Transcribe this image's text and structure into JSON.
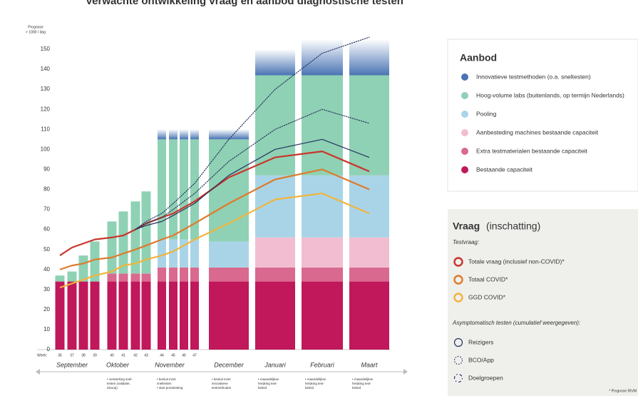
{
  "chart_data": {
    "type": "stacked-bar-line",
    "title": "Verwachte ontwikkeling vraag en aanbod diagnostische testen",
    "y_label": [
      "Prognose",
      "× 1000 / dag"
    ],
    "week_label": "Week:",
    "categories": [
      "36",
      "37",
      "38",
      "39",
      "40",
      "41",
      "42",
      "43",
      "44",
      "45",
      "46",
      "47",
      null,
      null,
      null,
      null
    ],
    "months": [
      {
        "label": "September",
        "notes": []
      },
      {
        "label": "Oktober",
        "notes": [
          "• versterking snel-",
          "testen (validatie,",
          "inkoop)"
        ]
      },
      {
        "label": "November",
        "notes": [
          "• besluit inzet",
          "sneltesten",
          "• start prototesting"
        ]
      },
      {
        "label": "December",
        "notes": [
          "• besluit inzet",
          "innovatieve",
          "testmethoden"
        ]
      },
      {
        "label": "Januari",
        "notes": [
          "• maandelijkse",
          "herijking test-",
          "beleid"
        ]
      },
      {
        "label": "Februari",
        "notes": [
          "• maandelijkse",
          "herijking test-",
          "beleid"
        ]
      },
      {
        "label": "Maart",
        "notes": [
          "• maandelijkse",
          "herijking test-",
          "beleid"
        ]
      }
    ],
    "ylim": [
      0,
      150
    ],
    "yticks": [
      0,
      10,
      20,
      30,
      40,
      50,
      60,
      70,
      80,
      90,
      100,
      110,
      120,
      130,
      140,
      150
    ],
    "series": [
      {
        "name": "Bestaande capaciteit",
        "color": "#c0185a",
        "values": [
          34,
          34,
          34,
          34,
          34,
          34,
          34,
          34,
          34,
          34,
          34,
          34,
          34,
          34,
          34,
          34
        ]
      },
      {
        "name": "Extra testmaterialen bestaande capaciteit",
        "color": "#d9698f",
        "values": [
          0,
          0,
          0,
          0,
          4,
          4,
          4,
          4,
          7,
          7,
          7,
          7,
          7,
          7,
          7,
          7
        ]
      },
      {
        "name": "Aanbesteding machines bestaande capaciteit",
        "color": "#f3bdd1",
        "values": [
          0,
          0,
          0,
          0,
          0,
          0,
          0,
          0,
          0,
          0,
          0,
          0,
          0,
          15,
          15,
          15
        ]
      },
      {
        "name": "Pooling",
        "color": "#a9d4e7",
        "values": [
          0,
          0,
          0,
          0,
          0,
          0,
          0,
          0,
          14,
          14,
          14,
          14,
          13,
          31,
          31,
          31
        ]
      },
      {
        "name": "Hoog-volume labs (buitenlands, op termijn Nederlands)",
        "color": "#8fd1b4",
        "values": [
          3,
          5,
          13,
          20,
          26,
          31,
          36,
          41,
          50,
          50,
          50,
          50,
          51,
          50,
          50,
          50
        ]
      },
      {
        "name": "Innovatieve testmethoden (o.a. sneltesten)",
        "color": "#4a74b4",
        "values": [
          0,
          0,
          0,
          0,
          0,
          0,
          0,
          0,
          5,
          5,
          5,
          5,
          5,
          13,
          18,
          18
        ]
      }
    ],
    "lines": [
      {
        "name": "Totale vraag (inclusief non-COVID)*",
        "color": "#c8352b",
        "style": "solid",
        "values": [
          47,
          51,
          53,
          55,
          56,
          57,
          60,
          63,
          66,
          68,
          71,
          74,
          86,
          96,
          99,
          89
        ]
      },
      {
        "name": "Totaal COVID*",
        "color": "#df7a2b",
        "style": "solid",
        "values": [
          40,
          42,
          43,
          45,
          46,
          48,
          50,
          52,
          55,
          57,
          60,
          63,
          73,
          85,
          90,
          80
        ]
      },
      {
        "name": "GGD COVID*",
        "color": "#f1b43c",
        "style": "solid",
        "values": [
          31,
          33,
          35,
          37,
          39,
          42,
          43,
          45,
          47,
          49,
          52,
          55,
          63,
          75,
          78,
          68
        ]
      },
      {
        "name": "Reizigers",
        "color": "#26325e",
        "style": "solid",
        "values": [
          null,
          null,
          null,
          null,
          null,
          null,
          60,
          62,
          64,
          67,
          70,
          73,
          87,
          100,
          105,
          96
        ]
      },
      {
        "name": "BCO/App",
        "color": "#26325e",
        "style": "dotted",
        "values": [
          null,
          null,
          null,
          null,
          null,
          null,
          60,
          63,
          66,
          70,
          74,
          78,
          94,
          110,
          120,
          113
        ]
      },
      {
        "name": "Doelgroepen",
        "color": "#26325e",
        "style": "dashdot",
        "values": [
          null,
          null,
          null,
          null,
          null,
          null,
          60,
          64,
          68,
          73,
          78,
          83,
          105,
          130,
          148,
          156
        ]
      }
    ],
    "legend_supply": {
      "title": "Aanbod"
    },
    "legend_demand": {
      "title": "Vraag",
      "subtitle": "(inschatting)",
      "group1": "Testvraag:",
      "group2": "Asymptomatisch testen (cumulatief weergegeven):"
    },
    "footnote": "* Prognose RIVM"
  }
}
